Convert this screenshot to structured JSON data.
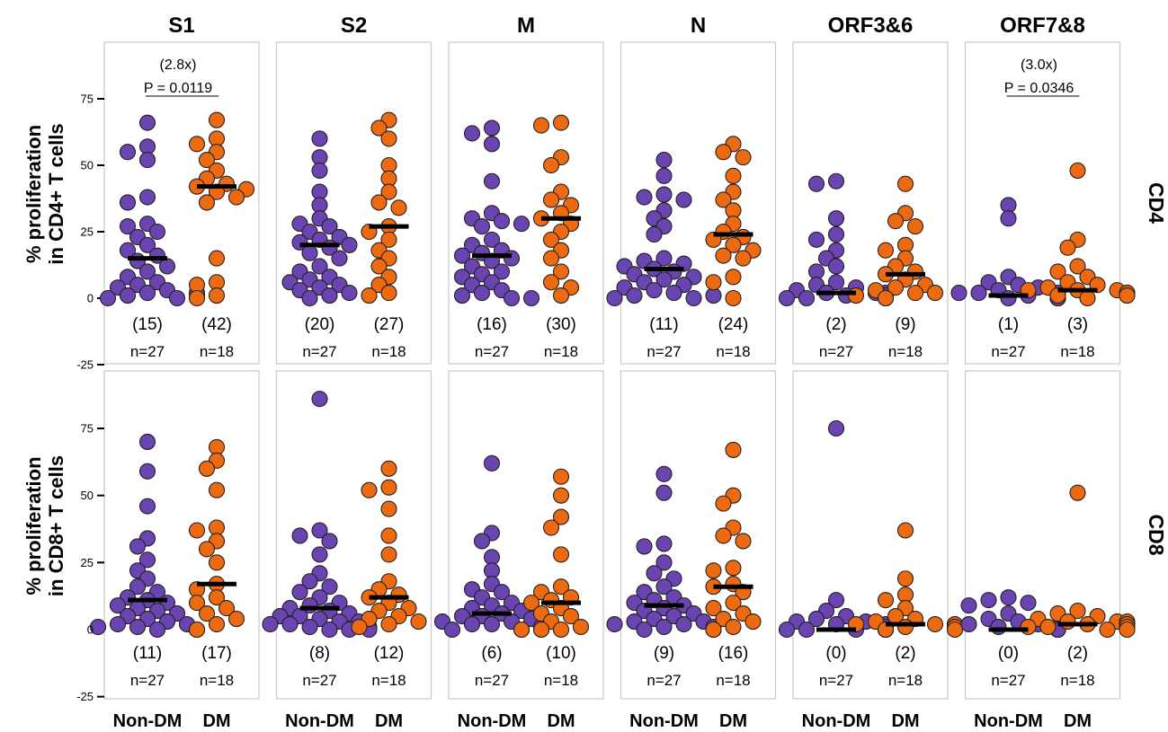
{
  "chart_data": {
    "type": "scatter",
    "panels_columns": [
      "S1",
      "S2",
      "M",
      "N",
      "ORF3&6",
      "ORF7&8"
    ],
    "rows": [
      {
        "row_label": "CD4",
        "ylabel": [
          "% proliferation",
          "in CD4+ T cells"
        ]
      },
      {
        "row_label": "CD8",
        "ylabel": [
          "% proliferation",
          "in CD8+ T cells"
        ]
      }
    ],
    "groups": [
      "Non-DM",
      "DM"
    ],
    "n_labels": [
      "n=27",
      "n=18"
    ],
    "colors": {
      "Non-DM": "#6a44b0",
      "DM": "#ee6a10"
    },
    "yticks": [
      -25,
      0,
      25,
      50,
      75
    ],
    "ylim": [
      -25,
      95
    ],
    "annotations": [
      {
        "row": 0,
        "col": 0,
        "fold": "(2.8x)",
        "pvalue": "P = 0.0119"
      },
      {
        "row": 0,
        "col": 5,
        "fold": "(3.0x)",
        "pvalue": "P = 0.0346"
      }
    ],
    "panels": [
      {
        "row": 0,
        "col": 0,
        "medians": [
          15,
          42
        ],
        "median_labels": [
          "(15)",
          "(42)"
        ],
        "points": [
          [
            66,
            57,
            55,
            52,
            38,
            36,
            28,
            27,
            25,
            23,
            20,
            18,
            16,
            14,
            12,
            10,
            8,
            6,
            5,
            4,
            3,
            2,
            1,
            0,
            0,
            1,
            2
          ],
          [
            67,
            60,
            58,
            55,
            52,
            48,
            45,
            43,
            42,
            41,
            40,
            38,
            36,
            15,
            6,
            5,
            1,
            0
          ]
        ]
      },
      {
        "row": 0,
        "col": 1,
        "medians": [
          20,
          27
        ],
        "median_labels": [
          "(20)",
          "(27)"
        ],
        "points": [
          [
            60,
            53,
            48,
            40,
            35,
            30,
            28,
            27,
            25,
            23,
            22,
            21,
            20,
            19,
            17,
            15,
            12,
            10,
            8,
            7,
            6,
            5,
            4,
            3,
            2,
            1,
            0
          ],
          [
            67,
            64,
            60,
            50,
            45,
            40,
            36,
            34,
            27,
            25,
            22,
            18,
            15,
            12,
            8,
            5,
            2,
            1
          ]
        ]
      },
      {
        "row": 0,
        "col": 2,
        "medians": [
          16,
          30
        ],
        "median_labels": [
          "(16)",
          "(30)"
        ],
        "points": [
          [
            64,
            62,
            58,
            44,
            32,
            30,
            29,
            28,
            27,
            22,
            20,
            18,
            17,
            16,
            15,
            14,
            12,
            10,
            9,
            8,
            6,
            5,
            3,
            2,
            1,
            0,
            0
          ],
          [
            66,
            65,
            53,
            50,
            40,
            37,
            35,
            32,
            30,
            28,
            25,
            22,
            18,
            15,
            10,
            6,
            4,
            1
          ]
        ]
      },
      {
        "row": 0,
        "col": 3,
        "medians": [
          11,
          24
        ],
        "median_labels": [
          "(11)",
          "(24)"
        ],
        "points": [
          [
            52,
            46,
            39,
            38,
            37,
            33,
            30,
            27,
            24,
            15,
            14,
            13,
            12,
            11,
            10,
            9,
            8,
            7,
            6,
            5,
            4,
            3,
            2,
            1,
            0,
            0,
            1
          ],
          [
            58,
            55,
            53,
            46,
            40,
            37,
            33,
            28,
            25,
            23,
            22,
            20,
            18,
            16,
            15,
            8,
            6,
            0
          ]
        ]
      },
      {
        "row": 0,
        "col": 4,
        "medians": [
          2,
          9
        ],
        "median_labels": [
          "(2)",
          "(9)"
        ],
        "points": [
          [
            44,
            43,
            30,
            24,
            22,
            18,
            15,
            12,
            10,
            6,
            5,
            4,
            3,
            2,
            2,
            2,
            1,
            1,
            1,
            1,
            1,
            1,
            0,
            0,
            0,
            0,
            0
          ],
          [
            43,
            32,
            29,
            27,
            20,
            18,
            15,
            12,
            10,
            9,
            7,
            5,
            4,
            3,
            2,
            2,
            1,
            0
          ]
        ]
      },
      {
        "row": 0,
        "col": 5,
        "medians": [
          1,
          3
        ],
        "median_labels": [
          "(1)",
          "(3)"
        ],
        "points": [
          [
            35,
            30,
            8,
            6,
            5,
            4,
            3,
            2,
            2,
            2,
            1,
            1,
            1,
            1,
            1,
            1,
            1,
            1,
            1,
            0,
            0,
            0,
            0,
            0,
            0,
            0,
            0
          ],
          [
            48,
            22,
            19,
            12,
            10,
            8,
            6,
            5,
            4,
            3,
            3,
            3,
            2,
            2,
            2,
            1,
            1,
            0
          ]
        ]
      },
      {
        "row": 1,
        "col": 0,
        "medians": [
          11,
          17
        ],
        "median_labels": [
          "(11)",
          "(17)"
        ],
        "points": [
          [
            70,
            59,
            46,
            34,
            31,
            26,
            22,
            19,
            16,
            14,
            12,
            11,
            10,
            9,
            8,
            7,
            6,
            5,
            4,
            3,
            2,
            2,
            1,
            1,
            0,
            0,
            0
          ],
          [
            68,
            63,
            60,
            52,
            38,
            37,
            33,
            30,
            25,
            17,
            15,
            12,
            10,
            8,
            6,
            4,
            2,
            0
          ]
        ]
      },
      {
        "row": 1,
        "col": 1,
        "medians": [
          8,
          12
        ],
        "median_labels": [
          "(8)",
          "(12)"
        ],
        "points": [
          [
            86,
            37,
            35,
            33,
            28,
            21,
            18,
            16,
            14,
            12,
            10,
            9,
            8,
            7,
            6,
            5,
            5,
            4,
            3,
            3,
            2,
            2,
            1,
            1,
            0,
            0,
            0
          ],
          [
            60,
            53,
            52,
            45,
            35,
            28,
            18,
            15,
            13,
            12,
            10,
            8,
            7,
            5,
            4,
            3,
            2,
            1
          ]
        ]
      },
      {
        "row": 1,
        "col": 2,
        "medians": [
          6,
          10
        ],
        "median_labels": [
          "(6)",
          "(10)"
        ],
        "points": [
          [
            62,
            36,
            33,
            27,
            22,
            17,
            15,
            14,
            12,
            10,
            9,
            8,
            7,
            6,
            5,
            5,
            4,
            3,
            3,
            2,
            2,
            1,
            1,
            1,
            0,
            0,
            0
          ],
          [
            57,
            50,
            42,
            38,
            28,
            16,
            14,
            12,
            11,
            10,
            8,
            6,
            5,
            3,
            1,
            0,
            0,
            0
          ]
        ]
      },
      {
        "row": 1,
        "col": 3,
        "medians": [
          9,
          16
        ],
        "median_labels": [
          "(9)",
          "(16)"
        ],
        "points": [
          [
            58,
            51,
            32,
            31,
            25,
            21,
            19,
            16,
            14,
            12,
            11,
            10,
            9,
            8,
            7,
            6,
            5,
            4,
            3,
            3,
            2,
            2,
            1,
            1,
            0,
            0,
            0
          ],
          [
            67,
            50,
            47,
            38,
            35,
            33,
            23,
            22,
            17,
            16,
            14,
            10,
            8,
            6,
            4,
            3,
            1,
            0
          ]
        ]
      },
      {
        "row": 1,
        "col": 4,
        "medians": [
          0,
          2
        ],
        "median_labels": [
          "(0)",
          "(2)"
        ],
        "points": [
          [
            75,
            11,
            7,
            5,
            4,
            3,
            3,
            2,
            2,
            1,
            1,
            1,
            1,
            1,
            1,
            1,
            1,
            0,
            0,
            0,
            0,
            0,
            0,
            0,
            0,
            0,
            0
          ],
          [
            37,
            19,
            13,
            11,
            8,
            5,
            4,
            3,
            2,
            2,
            2,
            2,
            1,
            1,
            1,
            1,
            0,
            0
          ]
        ]
      },
      {
        "row": 1,
        "col": 5,
        "medians": [
          0,
          2
        ],
        "median_labels": [
          "(0)",
          "(2)"
        ],
        "points": [
          [
            12,
            11,
            10,
            9,
            6,
            4,
            3,
            2,
            2,
            1,
            1,
            1,
            1,
            1,
            1,
            1,
            0,
            0,
            0,
            0,
            0,
            0,
            0,
            0,
            0,
            0,
            0
          ],
          [
            51,
            7,
            6,
            5,
            4,
            3,
            3,
            3,
            2,
            2,
            2,
            2,
            2,
            1,
            1,
            1,
            0,
            0
          ]
        ]
      }
    ]
  }
}
